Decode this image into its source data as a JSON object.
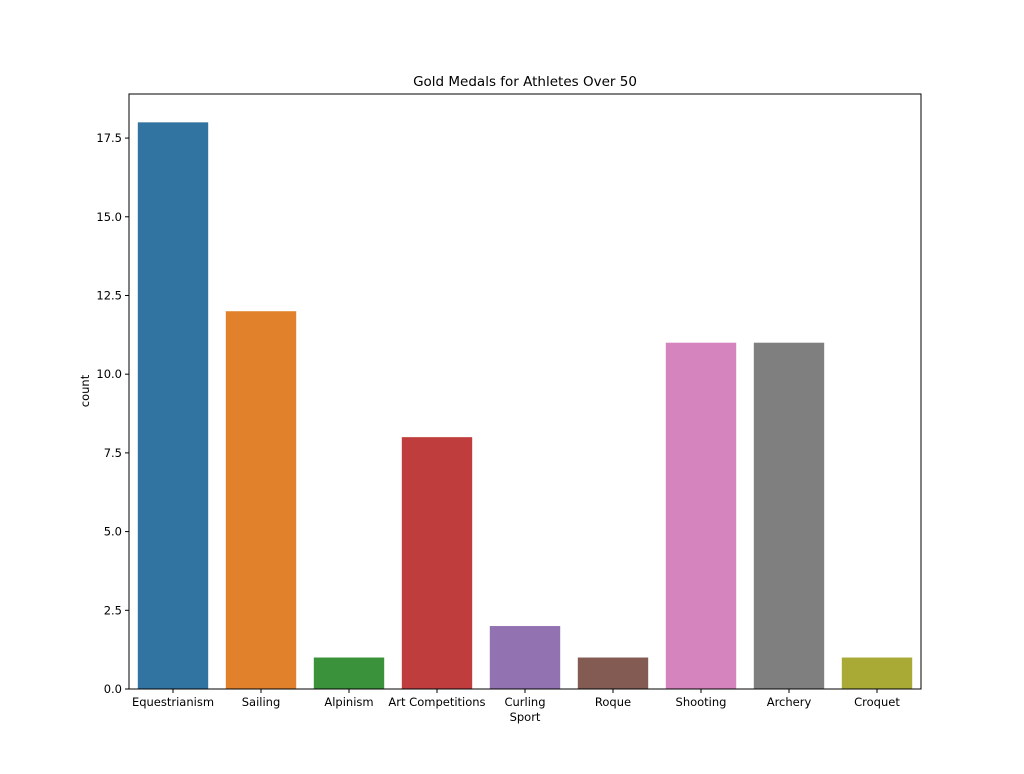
{
  "chart_data": {
    "type": "bar",
    "title": "Gold Medals for Athletes Over 50",
    "xlabel": "Sport",
    "ylabel": "count",
    "categories": [
      "Equestrianism",
      "Sailing",
      "Alpinism",
      "Art Competitions",
      "Curling",
      "Roque",
      "Shooting",
      "Archery",
      "Croquet"
    ],
    "values": [
      18,
      12,
      1,
      8,
      2,
      1,
      11,
      11,
      1
    ],
    "colors": [
      "#3274a1",
      "#e1812c",
      "#3a923a",
      "#c03d3e",
      "#9372b2",
      "#845b53",
      "#d684bd",
      "#7f7f7f",
      "#a9aa35"
    ],
    "ylim": [
      0,
      18.9
    ],
    "yticks": [
      0.0,
      2.5,
      5.0,
      7.5,
      10.0,
      12.5,
      15.0,
      17.5
    ],
    "ytick_labels": [
      "0.0",
      "2.5",
      "5.0",
      "7.5",
      "10.0",
      "12.5",
      "15.0",
      "17.5"
    ],
    "grid": false,
    "legend": "none"
  }
}
